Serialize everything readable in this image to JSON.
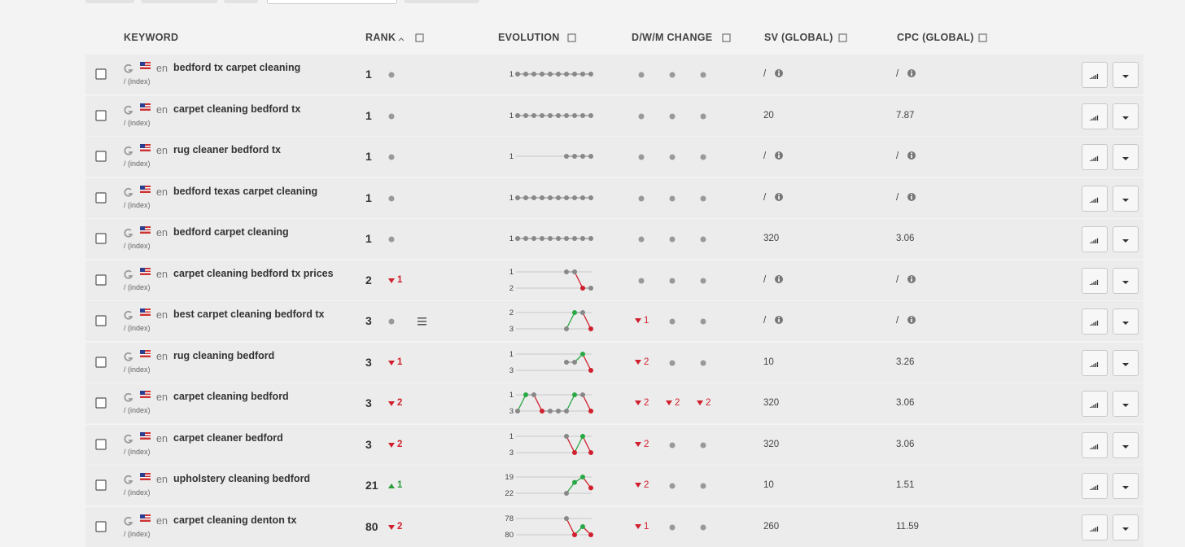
{
  "header": {
    "keyword": "KEYWORD",
    "rank": "RANK",
    "evolution": "EVOLUTION",
    "dwm": "D/W/M CHANGE",
    "sv": "SV (GLOBAL)",
    "cpc": "CPC (GLOBAL)"
  },
  "rows": [
    {
      "keyword": "bedford tx carpet cleaning",
      "lang": "en",
      "path": "/ (index)",
      "rank": 1,
      "change": null,
      "evolution": {
        "ticks": [
          1
        ],
        "values": [
          1,
          1,
          1,
          1,
          1,
          1,
          1,
          1,
          1,
          1
        ]
      },
      "dwm": [
        null,
        null,
        null
      ],
      "sv": "/",
      "sv_info": true,
      "cpc": "/",
      "cpc_info": true
    },
    {
      "keyword": "carpet cleaning bedford tx",
      "lang": "en",
      "path": "/ (index)",
      "rank": 1,
      "change": null,
      "evolution": {
        "ticks": [
          1
        ],
        "values": [
          1,
          1,
          1,
          1,
          1,
          1,
          1,
          1,
          1,
          1
        ]
      },
      "dwm": [
        null,
        null,
        null
      ],
      "sv": "20",
      "sv_info": false,
      "cpc": "7.87",
      "cpc_info": false
    },
    {
      "keyword": "rug cleaner bedford tx",
      "lang": "en",
      "path": "/ (index)",
      "rank": 1,
      "change": null,
      "evolution": {
        "ticks": [
          1
        ],
        "values": [
          null,
          null,
          null,
          null,
          null,
          null,
          1,
          1,
          1,
          1
        ]
      },
      "dwm": [
        null,
        null,
        null
      ],
      "sv": "/",
      "sv_info": true,
      "cpc": "/",
      "cpc_info": true
    },
    {
      "keyword": "bedford texas carpet cleaning",
      "lang": "en",
      "path": "/ (index)",
      "rank": 1,
      "change": null,
      "evolution": {
        "ticks": [
          1
        ],
        "values": [
          1,
          1,
          1,
          1,
          1,
          1,
          1,
          1,
          1,
          1
        ]
      },
      "dwm": [
        null,
        null,
        null
      ],
      "sv": "/",
      "sv_info": true,
      "cpc": "/",
      "cpc_info": true
    },
    {
      "keyword": "bedford carpet cleaning",
      "lang": "en",
      "path": "/ (index)",
      "rank": 1,
      "change": null,
      "evolution": {
        "ticks": [
          1
        ],
        "values": [
          1,
          1,
          1,
          1,
          1,
          1,
          1,
          1,
          1,
          1
        ]
      },
      "dwm": [
        null,
        null,
        null
      ],
      "sv": "320",
      "sv_info": false,
      "cpc": "3.06",
      "cpc_info": false
    },
    {
      "keyword": "carpet cleaning bedford tx prices",
      "lang": "en",
      "path": "/ (index)",
      "rank": 2,
      "change": {
        "dir": "down",
        "value": 1
      },
      "evolution": {
        "ticks": [
          1,
          2
        ],
        "values": [
          null,
          null,
          null,
          null,
          null,
          null,
          1,
          1,
          2,
          2
        ]
      },
      "dwm": [
        null,
        null,
        null
      ],
      "sv": "/",
      "sv_info": true,
      "cpc": "/",
      "cpc_info": true
    },
    {
      "keyword": "best carpet cleaning bedford tx",
      "lang": "en",
      "path": "/ (index)",
      "rank": 3,
      "change": null,
      "notes": true,
      "evolution": {
        "ticks": [
          2,
          3
        ],
        "values": [
          null,
          null,
          null,
          null,
          null,
          null,
          3,
          2,
          2,
          3
        ]
      },
      "dwm": [
        {
          "dir": "down",
          "value": 1
        },
        null,
        null
      ],
      "sv": "/",
      "sv_info": true,
      "cpc": "/",
      "cpc_info": true
    },
    {
      "keyword": "rug cleaning bedford",
      "lang": "en",
      "path": "/ (index)",
      "rank": 3,
      "change": {
        "dir": "down",
        "value": 1
      },
      "evolution": {
        "ticks": [
          1,
          3
        ],
        "values": [
          null,
          null,
          null,
          null,
          null,
          null,
          2,
          2,
          1,
          3
        ]
      },
      "dwm": [
        {
          "dir": "down",
          "value": 2
        },
        null,
        null
      ],
      "sv": "10",
      "sv_info": false,
      "cpc": "3.26",
      "cpc_info": false
    },
    {
      "keyword": "carpet cleaning bedford",
      "lang": "en",
      "path": "/ (index)",
      "rank": 3,
      "change": {
        "dir": "down",
        "value": 2
      },
      "evolution": {
        "ticks": [
          1,
          3
        ],
        "values": [
          3,
          1,
          1,
          3,
          3,
          3,
          3,
          1,
          1,
          3
        ]
      },
      "dwm": [
        {
          "dir": "down",
          "value": 2
        },
        {
          "dir": "down",
          "value": 2
        },
        {
          "dir": "down",
          "value": 2
        }
      ],
      "sv": "320",
      "sv_info": false,
      "cpc": "3.06",
      "cpc_info": false
    },
    {
      "keyword": "carpet cleaner bedford",
      "lang": "en",
      "path": "/ (index)",
      "rank": 3,
      "change": {
        "dir": "down",
        "value": 2
      },
      "evolution": {
        "ticks": [
          1,
          3
        ],
        "values": [
          null,
          null,
          null,
          null,
          null,
          null,
          1,
          3,
          1,
          3
        ]
      },
      "dwm": [
        {
          "dir": "down",
          "value": 2
        },
        null,
        null
      ],
      "sv": "320",
      "sv_info": false,
      "cpc": "3.06",
      "cpc_info": false
    },
    {
      "keyword": "upholstery cleaning bedford",
      "lang": "en",
      "path": "/ (index)",
      "rank": 21,
      "change": {
        "dir": "up",
        "value": 1
      },
      "evolution": {
        "ticks": [
          19,
          22
        ],
        "values": [
          null,
          null,
          null,
          null,
          null,
          null,
          22,
          20,
          19,
          21
        ]
      },
      "dwm": [
        {
          "dir": "down",
          "value": 2
        },
        null,
        null
      ],
      "sv": "10",
      "sv_info": false,
      "cpc": "1.51",
      "cpc_info": false
    },
    {
      "keyword": "carpet cleaning denton tx",
      "lang": "en",
      "path": "/ (index)",
      "rank": 80,
      "change": {
        "dir": "down",
        "value": 2
      },
      "evolution": {
        "ticks": [
          78,
          80
        ],
        "values": [
          null,
          null,
          null,
          null,
          null,
          null,
          78,
          80,
          79,
          80
        ]
      },
      "dwm": [
        {
          "dir": "down",
          "value": 1
        },
        null,
        null
      ],
      "sv": "260",
      "sv_info": false,
      "cpc": "11.59",
      "cpc_info": false
    }
  ]
}
